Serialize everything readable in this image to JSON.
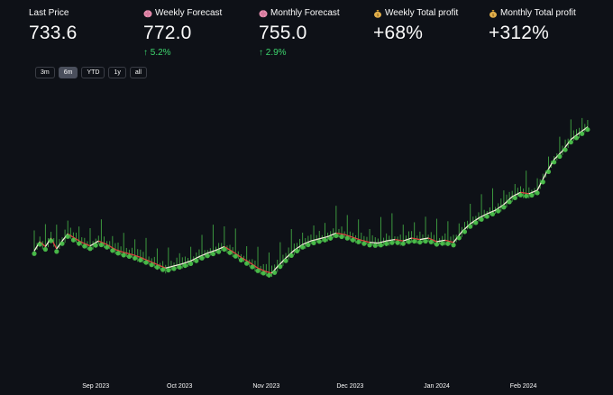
{
  "metrics": [
    {
      "id": "last-price",
      "label": "Last Price",
      "icon": "",
      "value": "733.6",
      "delta": ""
    },
    {
      "id": "weekly-forecast",
      "label": "Weekly Forecast",
      "icon": "brain-icon",
      "value": "772.0",
      "delta": "5.2%"
    },
    {
      "id": "monthly-forecast",
      "label": "Monthly Forecast",
      "icon": "brain-icon",
      "value": "755.0",
      "delta": "2.9%"
    },
    {
      "id": "weekly-total-profit",
      "label": "Weekly Total profit",
      "icon": "money-bag-icon",
      "value": "+68%",
      "delta": ""
    },
    {
      "id": "monthly-total-profit",
      "label": "Monthly Total profit",
      "icon": "money-bag-icon",
      "value": "+312%",
      "delta": ""
    }
  ],
  "range_selector": {
    "buttons": [
      "3m",
      "6m",
      "YTD",
      "1y",
      "all"
    ],
    "active": "6m"
  },
  "colors": {
    "background": "#0e1117",
    "up": "#4cc64c",
    "down": "#e04040",
    "price_line": "#f5f0dc",
    "delta_positive": "#3dd56d"
  },
  "chart_data": {
    "type": "line",
    "xlabel": "",
    "ylabel": "",
    "x_ticks": [
      "Sep 2023",
      "Oct 2023",
      "Nov 2023",
      "Dec 2023",
      "Jan 2024",
      "Feb 2024"
    ],
    "x_range": [
      "2023-08-10",
      "2024-02-25"
    ],
    "y_range": [
      390,
      790
    ],
    "grid": false,
    "series": [
      {
        "name": "",
        "points": [
          [
            "2023-08-10",
            560
          ],
          [
            "2023-08-12",
            573
          ],
          [
            "2023-08-14",
            566
          ],
          [
            "2023-08-16",
            578
          ],
          [
            "2023-08-18",
            563
          ],
          [
            "2023-08-20",
            574
          ],
          [
            "2023-08-22",
            584
          ],
          [
            "2023-08-24",
            579
          ],
          [
            "2023-08-27",
            572
          ],
          [
            "2023-08-30",
            567
          ],
          [
            "2023-09-02",
            574
          ],
          [
            "2023-09-05",
            569
          ],
          [
            "2023-09-08",
            562
          ],
          [
            "2023-09-11",
            558
          ],
          [
            "2023-09-14",
            555
          ],
          [
            "2023-09-17",
            551
          ],
          [
            "2023-09-20",
            546
          ],
          [
            "2023-09-23",
            541
          ],
          [
            "2023-09-26",
            536
          ],
          [
            "2023-09-29",
            539
          ],
          [
            "2023-10-02",
            542
          ],
          [
            "2023-10-05",
            546
          ],
          [
            "2023-10-08",
            552
          ],
          [
            "2023-10-11",
            557
          ],
          [
            "2023-10-14",
            561
          ],
          [
            "2023-10-17",
            566
          ],
          [
            "2023-10-20",
            559
          ],
          [
            "2023-10-23",
            551
          ],
          [
            "2023-10-26",
            544
          ],
          [
            "2023-10-29",
            536
          ],
          [
            "2023-11-01",
            531
          ],
          [
            "2023-11-03",
            529
          ],
          [
            "2023-11-05",
            538
          ],
          [
            "2023-11-08",
            550
          ],
          [
            "2023-11-11",
            561
          ],
          [
            "2023-11-14",
            569
          ],
          [
            "2023-11-17",
            574
          ],
          [
            "2023-11-20",
            577
          ],
          [
            "2023-11-23",
            580
          ],
          [
            "2023-11-26",
            585
          ],
          [
            "2023-11-29",
            583
          ],
          [
            "2023-12-02",
            579
          ],
          [
            "2023-12-05",
            575
          ],
          [
            "2023-12-08",
            572
          ],
          [
            "2023-12-11",
            571
          ],
          [
            "2023-12-14",
            574
          ],
          [
            "2023-12-17",
            576
          ],
          [
            "2023-12-20",
            574
          ],
          [
            "2023-12-23",
            578
          ],
          [
            "2023-12-26",
            576
          ],
          [
            "2023-12-29",
            578
          ],
          [
            "2024-01-01",
            573
          ],
          [
            "2024-01-04",
            575
          ],
          [
            "2024-01-07",
            572
          ],
          [
            "2024-01-10",
            587
          ],
          [
            "2024-01-13",
            598
          ],
          [
            "2024-01-16",
            606
          ],
          [
            "2024-01-19",
            612
          ],
          [
            "2024-01-22",
            617
          ],
          [
            "2024-01-25",
            625
          ],
          [
            "2024-01-28",
            636
          ],
          [
            "2024-01-31",
            642
          ],
          [
            "2024-02-03",
            640
          ],
          [
            "2024-02-06",
            645
          ],
          [
            "2024-02-09",
            668
          ],
          [
            "2024-02-12",
            688
          ],
          [
            "2024-02-15",
            700
          ],
          [
            "2024-02-18",
            716
          ],
          [
            "2024-02-21",
            725
          ],
          [
            "2024-02-24",
            733.6
          ]
        ]
      }
    ]
  }
}
